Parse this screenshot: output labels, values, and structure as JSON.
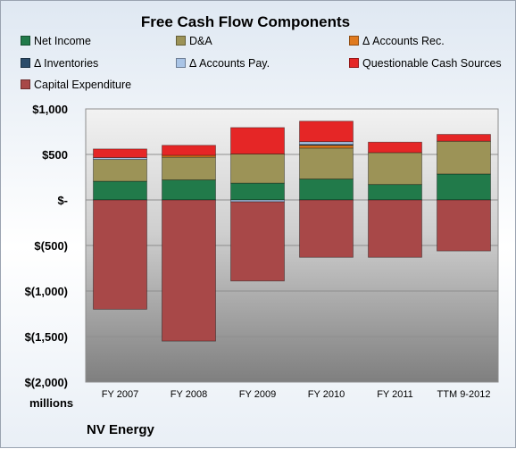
{
  "chart_data": {
    "type": "bar",
    "stacked": true,
    "title": "Free Cash Flow Components",
    "units_label": "millions",
    "categories": [
      "FY 2007",
      "FY 2008",
      "FY 2009",
      "FY 2010",
      "FY 2011",
      "TTM 9-2012"
    ],
    "ylim": [
      -2000,
      1000
    ],
    "yticks": [
      1000,
      500,
      0,
      -500,
      -1000,
      -1500,
      -2000
    ],
    "ytick_labels": [
      "$1,000",
      "$500",
      "$-",
      "$(500)",
      "$(1,000)",
      "$(1,500)",
      "$(2,000)"
    ],
    "grid": true,
    "legend_position": "top",
    "series": [
      {
        "name": "Net Income",
        "color": "#217a4a",
        "values": [
          205,
          220,
          185,
          230,
          170,
          285
        ]
      },
      {
        "name": "D&A",
        "color": "#9c9357",
        "values": [
          240,
          250,
          320,
          340,
          350,
          360
        ]
      },
      {
        "name": "Δ Accounts Rec.",
        "color": "#e07a1f",
        "values": [
          0,
          20,
          0,
          30,
          0,
          0
        ]
      },
      {
        "name": "Δ Inventories",
        "color": "#2c4d6b",
        "values": [
          0,
          0,
          0,
          10,
          0,
          0
        ]
      },
      {
        "name": "Δ Accounts Pay.",
        "color": "#a9c4e6",
        "values": [
          20,
          0,
          -20,
          30,
          0,
          0
        ]
      },
      {
        "name": "Questionable Cash Sources",
        "color": "#e52626",
        "values": [
          95,
          110,
          290,
          225,
          115,
          75
        ]
      },
      {
        "name": "Capital Expenditure",
        "color": "#a84848",
        "values": [
          -1200,
          -1550,
          -870,
          -630,
          -630,
          -560
        ]
      }
    ]
  },
  "company": "NV Energy"
}
